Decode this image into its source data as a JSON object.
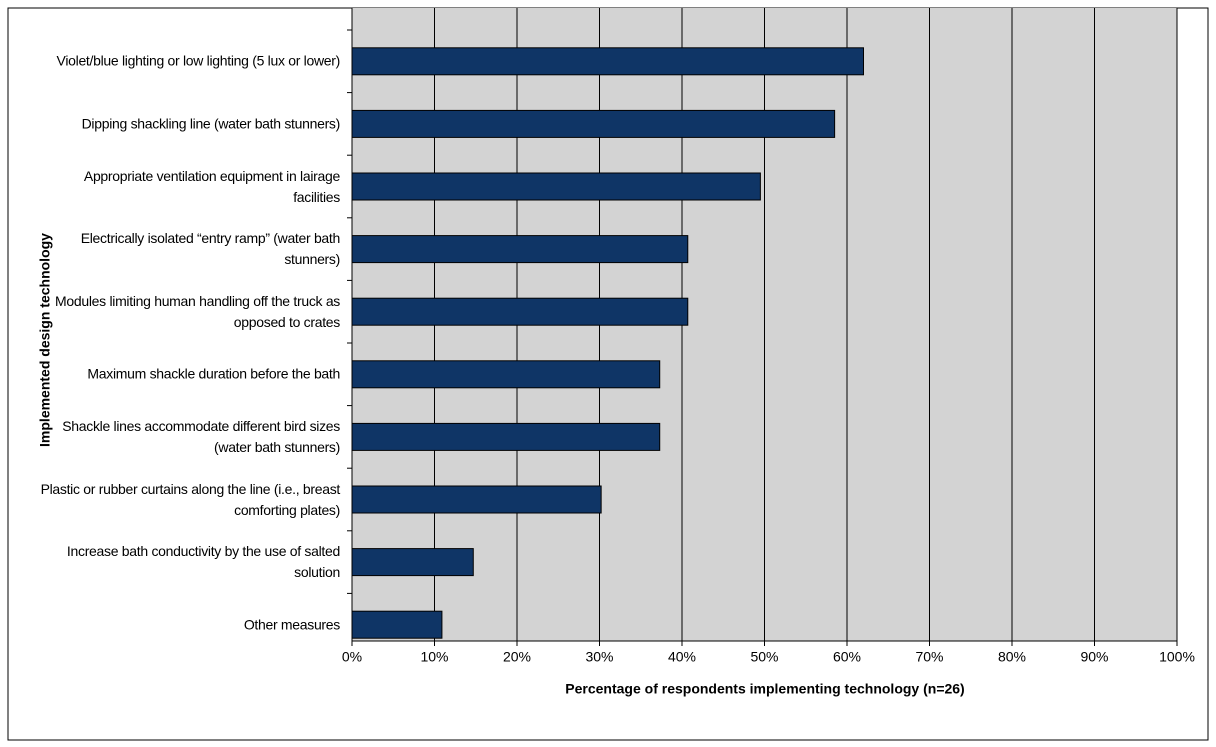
{
  "chart_data": {
    "type": "barh",
    "xlabel": "Percentage of respondents implementing technology (n=26)",
    "ylabel": "Implemented design technology",
    "categories": [
      "Violet/blue lighting or low lighting (5 lux or lower)",
      "Dipping shackling line (water bath stunners)",
      "Appropriate ventilation equipment in lairage facilities",
      "Electrically isolated “entry ramp” (water bath stunners)",
      "Modules limiting human handling off the truck as opposed to crates",
      "Maximum shackle duration before the bath",
      "Shackle lines accommodate different bird sizes (water bath stunners)",
      "Plastic or rubber curtains along the line (i.e., breast comforting plates)",
      "Increase bath conductivity by the use of salted solution",
      "Other measures"
    ],
    "values": [
      62,
      58.5,
      49.5,
      40.7,
      40.7,
      37.3,
      37.3,
      30.2,
      14.7,
      10.9
    ],
    "color": "#0f3566",
    "xlim": [
      0,
      100
    ],
    "xticks": [
      {
        "value": 0,
        "label": "0%"
      },
      {
        "value": 10,
        "label": "10%"
      },
      {
        "value": 20,
        "label": "20%"
      },
      {
        "value": 30,
        "label": "30%"
      },
      {
        "value": 40,
        "label": "40%"
      },
      {
        "value": 50,
        "label": "50%"
      },
      {
        "value": 60,
        "label": "60%"
      },
      {
        "value": 70,
        "label": "70%"
      },
      {
        "value": 80,
        "label": "80%"
      },
      {
        "value": 90,
        "label": "90%"
      },
      {
        "value": 100,
        "label": "100%"
      }
    ],
    "grid": true
  }
}
